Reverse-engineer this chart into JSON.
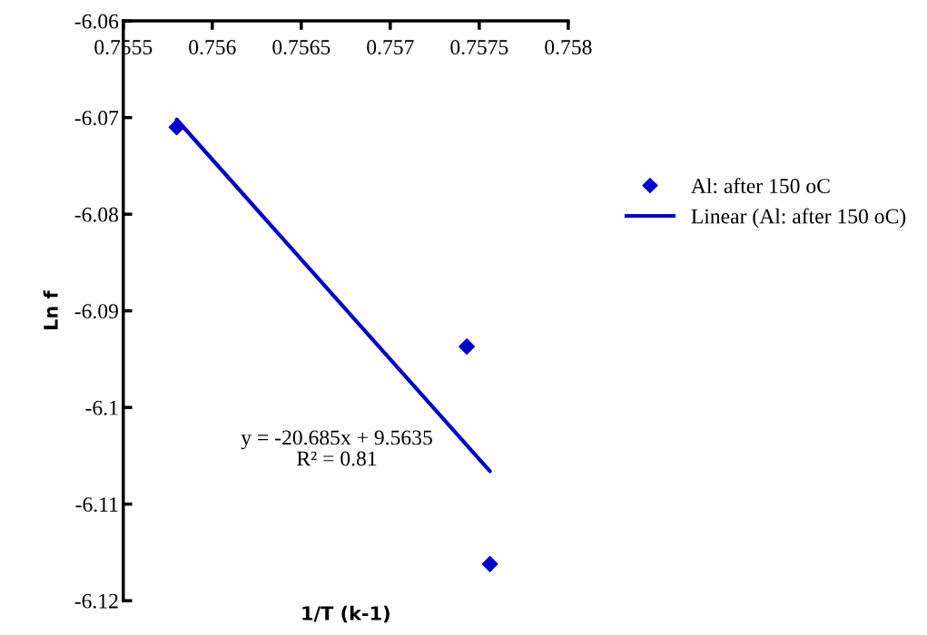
{
  "chart_data": {
    "type": "scatter",
    "xlabel": "1/T (k-1)",
    "ylabel": "Ln f",
    "series": [
      {
        "name": "Al: after 150 oC",
        "color": "#0000cc",
        "marker": "diamond",
        "x": [
          0.7558,
          0.75743,
          0.75756
        ],
        "values": [
          -6.071,
          -6.0937,
          -6.1162
        ]
      },
      {
        "name": "Linear (Al: after 150 oC)",
        "type": "line",
        "color": "#0000cc",
        "marker": "none",
        "line_style": "solid",
        "x": [
          0.7558,
          0.75756
        ],
        "values": [
          -6.0702,
          -6.1066
        ]
      }
    ],
    "xlim": [
      0.7555,
      0.758
    ],
    "xticks": [
      0.7555,
      0.756,
      0.7565,
      0.757,
      0.7575,
      0.758
    ],
    "ylim": [
      -6.12,
      -6.06
    ],
    "yticks": [
      -6.12,
      -6.11,
      -6.1,
      -6.09,
      -6.08,
      -6.07,
      -6.06
    ],
    "annotations": [
      "y = -20.685x + 9.5635\nR² = 0.81"
    ],
    "grid": false,
    "legend": "right"
  }
}
